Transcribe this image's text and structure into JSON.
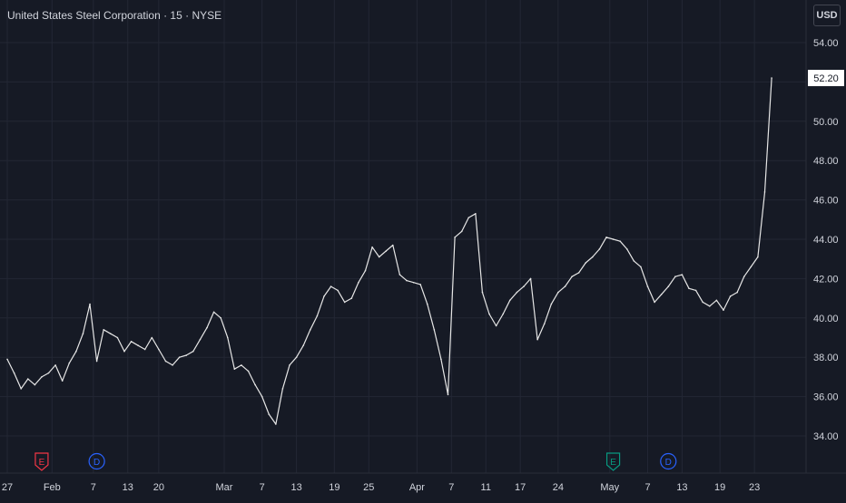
{
  "header": {
    "title": "United States Steel Corporation · 15 · NYSE",
    "currency": "USD"
  },
  "colors": {
    "background": "#161a25",
    "grid": "#232734",
    "line": "#e6e6e6",
    "text": "#d1d4dc",
    "earnings": "#f23645",
    "earnings_future": "#089981",
    "dividend": "#2962ff"
  },
  "chart_data": {
    "type": "line",
    "ylim": [
      33,
      55
    ],
    "xlim": [
      -1,
      117
    ],
    "grid": true,
    "last_price": "52.20",
    "y_ticks": [
      "34.00",
      "36.00",
      "38.00",
      "40.00",
      "42.00",
      "44.00",
      "46.00",
      "48.00",
      "50.00",
      "52.00",
      "54.00"
    ],
    "x_ticks": [
      {
        "i": 0,
        "label": "27"
      },
      {
        "i": 6.5,
        "label": "Feb"
      },
      {
        "i": 12.5,
        "label": "7"
      },
      {
        "i": 17.5,
        "label": "13"
      },
      {
        "i": 22,
        "label": "20"
      },
      {
        "i": 31.5,
        "label": "Mar"
      },
      {
        "i": 37,
        "label": "7"
      },
      {
        "i": 42,
        "label": "13"
      },
      {
        "i": 47.5,
        "label": "19"
      },
      {
        "i": 52.5,
        "label": "25"
      },
      {
        "i": 59.5,
        "label": "Apr"
      },
      {
        "i": 64.5,
        "label": "7"
      },
      {
        "i": 69.5,
        "label": "11"
      },
      {
        "i": 74.5,
        "label": "17"
      },
      {
        "i": 80,
        "label": "24"
      },
      {
        "i": 87.5,
        "label": "May"
      },
      {
        "i": 93,
        "label": "7"
      },
      {
        "i": 98,
        "label": "13"
      },
      {
        "i": 103.5,
        "label": "19"
      },
      {
        "i": 108.5,
        "label": "23"
      }
    ],
    "event_markers": [
      {
        "type": "earnings",
        "label": "E",
        "i": 5
      },
      {
        "type": "dividend",
        "label": "D",
        "i": 13
      },
      {
        "type": "earnings_future",
        "label": "E",
        "i": 88
      },
      {
        "type": "dividend",
        "label": "D",
        "i": 96
      }
    ],
    "series": [
      {
        "values": [
          37.9,
          37.2,
          36.4,
          36.9,
          36.6,
          37.0,
          37.2,
          37.6,
          36.8,
          37.7,
          38.3,
          39.2,
          40.7,
          37.8,
          39.4,
          39.2,
          39.0,
          38.3,
          38.8,
          38.6,
          38.4,
          39.0,
          38.4,
          37.8,
          37.6,
          38.0,
          38.1,
          38.3,
          38.9,
          39.5,
          40.3,
          40.0,
          39.0,
          37.4,
          37.6,
          37.3,
          36.6,
          36.0,
          35.1,
          34.6,
          36.4,
          37.6,
          38.0,
          38.6,
          39.4,
          40.1,
          41.1,
          41.6,
          41.4,
          40.8,
          41.0,
          41.8,
          42.4,
          43.6,
          43.1,
          43.4,
          43.7,
          42.2,
          41.9,
          41.8,
          41.7,
          40.7,
          39.4,
          37.9,
          36.1,
          44.1,
          44.4,
          45.1,
          45.3,
          41.3,
          40.2,
          39.6,
          40.2,
          40.9,
          41.3,
          41.6,
          42.0,
          38.9,
          39.7,
          40.7,
          41.3,
          41.6,
          42.1,
          42.3,
          42.8,
          43.1,
          43.5,
          44.1,
          44.0,
          43.9,
          43.5,
          42.9,
          42.6,
          41.6,
          40.8,
          41.2,
          41.6,
          42.1,
          42.2,
          41.5,
          41.4,
          40.8,
          40.6,
          40.9,
          40.4,
          41.1,
          41.3,
          42.1,
          42.6,
          43.1,
          46.4,
          52.2
        ]
      }
    ]
  }
}
